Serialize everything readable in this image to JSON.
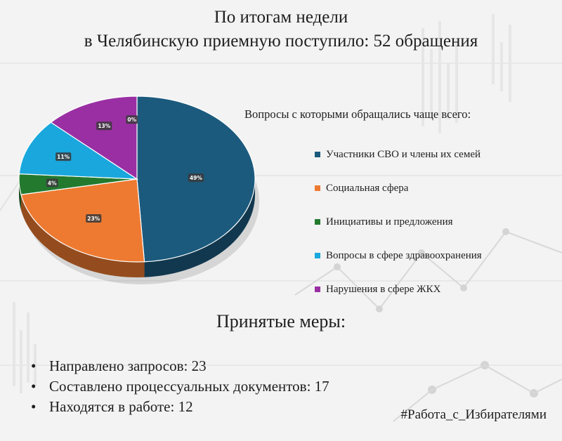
{
  "header": {
    "line1": "По итогам недели",
    "line2": "в Челябинскую приемную поступило: 52 обращения"
  },
  "chart_data": {
    "type": "pie",
    "title": "Вопросы с которыми обращались чаще всего:",
    "slices": [
      {
        "name": "Участники СВО и члены их семей",
        "value": 49,
        "label": "49%",
        "color": "#1b5a7d"
      },
      {
        "name": "Социальная сфера",
        "value": 23,
        "label": "23%",
        "color": "#ee7a31"
      },
      {
        "name": "Инициативы и предложения",
        "value": 4,
        "label": "4%",
        "color": "#237a2f"
      },
      {
        "name": "Вопросы в сфере здравоохранения",
        "value": 11,
        "label": "11%",
        "color": "#19a7dd"
      },
      {
        "name": "Нарушения в сфере ЖКХ",
        "value": 13,
        "label": "13%",
        "color": "#9a2fa3"
      }
    ],
    "extra_label": "0%",
    "legend_position": "right"
  },
  "measures": {
    "title": "Принятые меры:",
    "bullet": "•",
    "items": [
      "Направлено запросов: 23",
      "Составлено процессуальных документов: 17",
      "Находятся в работе: 12"
    ]
  },
  "hashtag": "#Работа_с_Избирателями"
}
